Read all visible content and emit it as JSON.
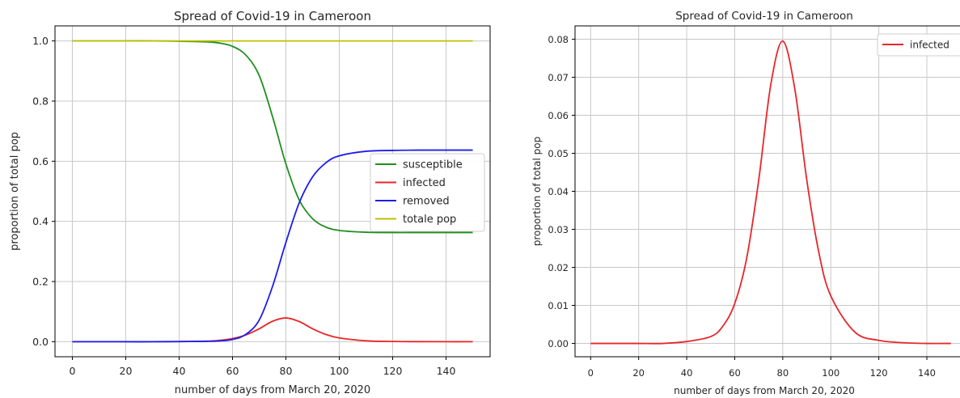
{
  "chart_data": [
    {
      "type": "line",
      "title": "Spread of Covid-19 in Cameroon",
      "xlabel": "number of days from March 20, 2020",
      "ylabel": "proportion of total pop",
      "xlim": [
        -6.5,
        156.5
      ],
      "ylim": [
        -0.05,
        1.05
      ],
      "xticks": [
        "0",
        "20",
        "40",
        "60",
        "80",
        "100",
        "120",
        "140"
      ],
      "yticks": [
        "0.0",
        "0.2",
        "0.4",
        "0.6",
        "0.8",
        "1.0"
      ],
      "grid": true,
      "legend_position": "center-right",
      "series": [
        {
          "name": "susceptible",
          "color": "#1f8f1f",
          "x": [
            0,
            10,
            20,
            30,
            40,
            50,
            55,
            60,
            65,
            70,
            75,
            80,
            85,
            90,
            95,
            100,
            110,
            120,
            130,
            140,
            150
          ],
          "y": [
            1.0,
            1.0,
            1.0,
            1.0,
            0.999,
            0.997,
            0.993,
            0.982,
            0.953,
            0.885,
            0.748,
            0.591,
            0.471,
            0.409,
            0.381,
            0.37,
            0.364,
            0.363,
            0.363,
            0.363,
            0.363
          ]
        },
        {
          "name": "infected",
          "color": "#e8262a",
          "x": [
            0,
            10,
            20,
            30,
            40,
            50,
            55,
            60,
            65,
            70,
            75,
            80,
            85,
            90,
            95,
            100,
            110,
            120,
            130,
            140,
            150
          ],
          "y": [
            0.0,
            0.0,
            0.0,
            0.0,
            0.0005,
            0.0018,
            0.0045,
            0.0105,
            0.0225,
            0.043,
            0.068,
            0.079,
            0.067,
            0.043,
            0.024,
            0.0125,
            0.003,
            0.0008,
            0.0002,
            0.0,
            0.0
          ]
        },
        {
          "name": "removed",
          "color": "#1c1cf0",
          "x": [
            0,
            10,
            20,
            30,
            40,
            50,
            55,
            60,
            65,
            70,
            75,
            80,
            85,
            90,
            95,
            100,
            110,
            120,
            130,
            140,
            150
          ],
          "y": [
            0.0,
            0.0,
            0.0,
            0.0,
            0.0005,
            0.0012,
            0.0025,
            0.0075,
            0.0245,
            0.072,
            0.184,
            0.33,
            0.462,
            0.548,
            0.595,
            0.618,
            0.633,
            0.636,
            0.637,
            0.637,
            0.637
          ]
        },
        {
          "name": "totale pop",
          "color": "#bfbf00",
          "x": [
            0,
            150
          ],
          "y": [
            1.0,
            1.0
          ]
        }
      ]
    },
    {
      "type": "line",
      "title": "Spread of Covid-19 in Cameroon",
      "xlabel": "number of days from March 20, 2020",
      "ylabel": "proportion of total pop",
      "xlim": [
        -6.5,
        156.5
      ],
      "ylim": [
        -0.0035,
        0.0835
      ],
      "xticks": [
        "0",
        "20",
        "40",
        "60",
        "80",
        "100",
        "120",
        "140"
      ],
      "yticks": [
        "0.00",
        "0.01",
        "0.02",
        "0.03",
        "0.04",
        "0.05",
        "0.06",
        "0.07",
        "0.08"
      ],
      "grid": true,
      "legend_position": "top-right",
      "series": [
        {
          "name": "infected",
          "color": "#e8262a",
          "x": [
            0,
            10,
            20,
            30,
            40,
            50,
            55,
            60,
            65,
            70,
            75,
            80,
            85,
            90,
            95,
            100,
            110,
            120,
            130,
            140,
            150
          ],
          "y": [
            0.0,
            0.0,
            0.0,
            0.0,
            0.0005,
            0.0018,
            0.0045,
            0.0105,
            0.0225,
            0.043,
            0.068,
            0.0795,
            0.067,
            0.043,
            0.024,
            0.0125,
            0.003,
            0.0008,
            0.0002,
            0.0,
            0.0
          ]
        }
      ]
    }
  ]
}
